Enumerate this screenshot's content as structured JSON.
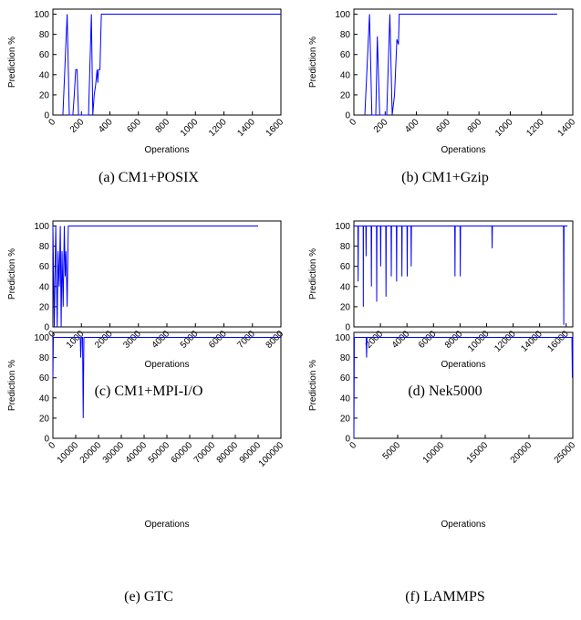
{
  "chart_data": [
    {
      "type": "line",
      "caption": "(a)  CM1+POSIX",
      "xlabel": "Operations",
      "ylabel": "Prediction %",
      "x": [
        70,
        100,
        115,
        140,
        150,
        160,
        170,
        175,
        180,
        250,
        270,
        280,
        290,
        300,
        310,
        315,
        320,
        330,
        340,
        1600
      ],
      "values": [
        0,
        100,
        0,
        0,
        20,
        45,
        45,
        20,
        0,
        0,
        100,
        0,
        20,
        30,
        45,
        32,
        45,
        45,
        100,
        100
      ],
      "color": "#0000ff",
      "xlim": [
        0,
        1600
      ],
      "xticks": [
        0,
        200,
        400,
        600,
        800,
        1000,
        1200,
        1400,
        1600
      ],
      "ylim": [
        0,
        105
      ],
      "yticks": [
        0,
        20,
        40,
        60,
        80,
        100
      ]
    },
    {
      "type": "line",
      "caption": "(b)  CM1+Gzip",
      "xlabel": "Operations",
      "ylabel": "Prediction %",
      "x": [
        70,
        100,
        115,
        140,
        150,
        165,
        210,
        230,
        245,
        260,
        275,
        285,
        290,
        1300
      ],
      "values": [
        0,
        100,
        0,
        0,
        78,
        0,
        0,
        100,
        0,
        20,
        75,
        70,
        100,
        100
      ],
      "color": "#0000ff",
      "xlim": [
        0,
        1400
      ],
      "xticks": [
        0,
        200,
        400,
        600,
        800,
        1000,
        1200,
        1400
      ],
      "ylim": [
        0,
        105
      ],
      "yticks": [
        0,
        20,
        40,
        60,
        80,
        100
      ]
    },
    {
      "type": "line",
      "caption": "(c)  CM1+MPI-I/O",
      "xlabel": "Operations",
      "ylabel": "Prediction %",
      "x": [
        0,
        50,
        100,
        150,
        180,
        220,
        260,
        290,
        320,
        360,
        400,
        430,
        460,
        500,
        540,
        7200
      ],
      "values": [
        100,
        0,
        100,
        0,
        75,
        40,
        100,
        0,
        75,
        20,
        100,
        50,
        75,
        20,
        100,
        100
      ],
      "color": "#0000ff",
      "xlim": [
        0,
        8000
      ],
      "xticks": [
        0,
        1000,
        2000,
        3000,
        4000,
        5000,
        6000,
        7000,
        8000
      ],
      "ylim": [
        0,
        105
      ],
      "yticks": [
        0,
        20,
        40,
        60,
        80,
        100
      ]
    },
    {
      "type": "line",
      "caption": "(d)  Nek5000",
      "xlabel": "Operations",
      "ylabel": "Prediction %",
      "x": [
        0,
        300,
        320,
        340,
        700,
        710,
        720,
        900,
        920,
        940,
        1300,
        1320,
        1340,
        1700,
        1720,
        1740,
        2000,
        2020,
        2040,
        2400,
        2420,
        2440,
        2800,
        2820,
        2840,
        3200,
        3220,
        3240,
        3600,
        3620,
        3640,
        4000,
        4020,
        4040,
        4300,
        4320,
        4340,
        7600,
        7620,
        7640,
        8000,
        8020,
        8040,
        10400,
        10420,
        10440,
        15800,
        15820,
        15840,
        16100
      ],
      "values": [
        100,
        100,
        45,
        100,
        100,
        20,
        100,
        100,
        70,
        100,
        100,
        40,
        100,
        100,
        25,
        100,
        100,
        60,
        100,
        100,
        30,
        100,
        100,
        50,
        100,
        100,
        45,
        100,
        100,
        50,
        100,
        100,
        50,
        100,
        100,
        60,
        100,
        100,
        50,
        100,
        100,
        50,
        100,
        100,
        78,
        100,
        100,
        2,
        100,
        100
      ],
      "color": "#0000ff",
      "xlim": [
        0,
        16500
      ],
      "xticks": [
        2000,
        4000,
        6000,
        8000,
        10000,
        12000,
        14000,
        16000
      ],
      "ylim": [
        0,
        105
      ],
      "yticks": [
        0,
        20,
        40,
        60,
        80,
        100
      ]
    },
    {
      "type": "line",
      "caption": "(e)  GTC",
      "xlabel": "Operations",
      "ylabel": "Prediction %",
      "x": [
        0,
        200,
        12000,
        12200,
        12500,
        13000,
        13300,
        13600,
        100000
      ],
      "values": [
        60,
        100,
        100,
        80,
        100,
        100,
        20,
        100,
        100
      ],
      "color": "#0000ff",
      "xlim": [
        0,
        100000
      ],
      "xticks": [
        0,
        10000,
        20000,
        30000,
        40000,
        50000,
        60000,
        70000,
        80000,
        90000,
        100000
      ],
      "ylim": [
        0,
        105
      ],
      "yticks": [
        0,
        20,
        40,
        60,
        80,
        100
      ]
    },
    {
      "type": "line",
      "caption": "(f)  LAMMPS",
      "xlabel": "Operations",
      "ylabel": "Prediction %",
      "x": [
        0,
        50,
        1400,
        1450,
        1500,
        24900,
        24950,
        25000
      ],
      "values": [
        0,
        100,
        100,
        80,
        100,
        100,
        60,
        100
      ],
      "color": "#0000ff",
      "xlim": [
        0,
        25000
      ],
      "xticks": [
        0,
        5000,
        10000,
        15000,
        20000,
        25000
      ],
      "ylim": [
        0,
        105
      ],
      "yticks": [
        0,
        20,
        40,
        60,
        80,
        100
      ]
    }
  ]
}
